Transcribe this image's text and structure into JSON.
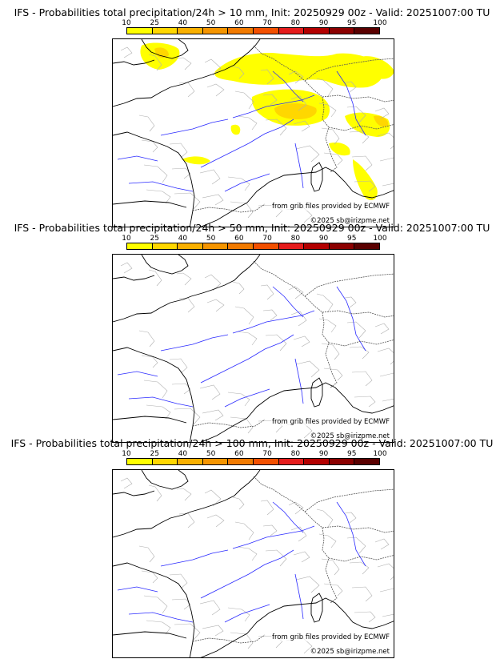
{
  "colorbar": {
    "ticks": [
      "10",
      "25",
      "40",
      "50",
      "60",
      "70",
      "80",
      "90",
      "95",
      "100"
    ],
    "colors": [
      "#ffff00",
      "#ffd700",
      "#f9b000",
      "#f59500",
      "#f17a00",
      "#f35000",
      "#e51c1c",
      "#b30000",
      "#8b0000",
      "#5a0000"
    ]
  },
  "panels": [
    {
      "title": "IFS - Probabilities total precipitation/24h > 10 mm, Init: 20250929 00z - Valid: 20251007:00 TU",
      "credit_source": "from grib files provided by ECMWF",
      "credit_copyright": "©2025 sb@irizpme.net",
      "has_precip": true
    },
    {
      "title": "IFS - Probabilities total precipitation/24h > 50 mm, Init: 20250929 00z - Valid: 20251007:00 TU",
      "credit_source": "from grib files provided by ECMWF",
      "credit_copyright": "©2025 sb@irizpme.net",
      "has_precip": false
    },
    {
      "title": "IFS - Probabilities total precipitation/24h > 100 mm, Init: 20250929 00z - Valid: 20251007:00 TU",
      "credit_source": "from grib files provided by ECMWF",
      "credit_copyright": "©2025 sb@irizpme.net",
      "has_precip": false
    }
  ]
}
